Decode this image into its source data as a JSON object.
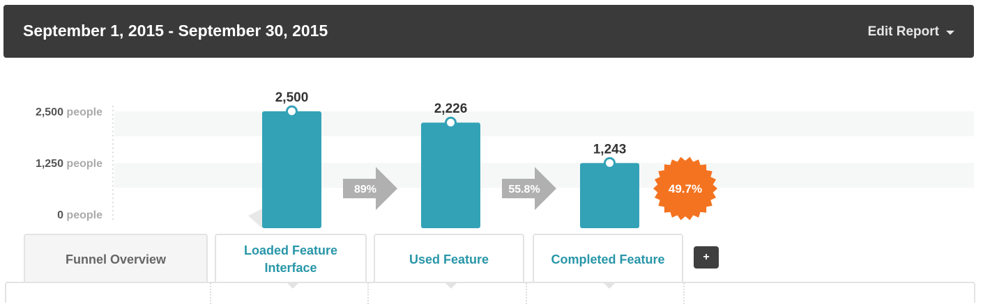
{
  "header": {
    "date_range": "September 1, 2015 - September 30, 2015",
    "edit_report_label": "Edit Report"
  },
  "chart_data": {
    "type": "bar",
    "categories": [
      "Loaded Feature Interface",
      "Used Feature",
      "Completed Feature"
    ],
    "values": [
      2500,
      2226,
      1243
    ],
    "value_labels": [
      "2,500",
      "2,226",
      "1,243"
    ],
    "conversion_labels": [
      "89%",
      "55.8%"
    ],
    "overall_conversion_label": "49.7%",
    "y_ticks": [
      {
        "value": 2500,
        "label": "2,500",
        "unit": "people"
      },
      {
        "value": 1250,
        "label": "1,250",
        "unit": "people"
      },
      {
        "value": 0,
        "label": "0",
        "unit": "people"
      }
    ],
    "ylim": [
      0,
      2500
    ],
    "colors": {
      "bar": "#33a2b7",
      "arrow": "#b0b0b0",
      "badge": "#f47320",
      "band": "#f6f8f7"
    }
  },
  "tabs": [
    {
      "label": "Funnel Overview"
    },
    {
      "label": "Loaded Feature\nInterface"
    },
    {
      "label": "Used Feature"
    },
    {
      "label": "Completed Feature"
    }
  ],
  "add_button_label": "+"
}
